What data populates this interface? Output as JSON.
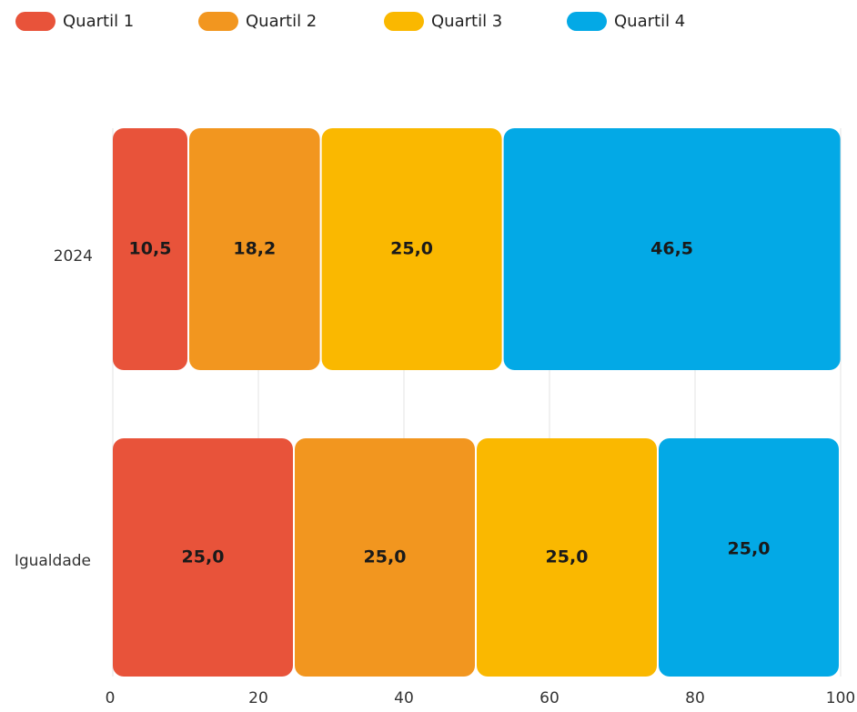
{
  "chart_data": {
    "type": "bar",
    "orientation": "horizontal",
    "stacked": true,
    "title": "",
    "xlabel": "",
    "ylabel": "",
    "categories": [
      "2024",
      "Igualdade"
    ],
    "series": [
      {
        "name": "Quartil 1",
        "values": [
          10.5,
          25.0
        ],
        "labels": [
          "10,5",
          "25,0"
        ],
        "color": "#E8533A"
      },
      {
        "name": "Quartil 2",
        "values": [
          18.2,
          25.0
        ],
        "labels": [
          "18,2",
          "25,0"
        ],
        "color": "#F2961F"
      },
      {
        "name": "Quartil 3",
        "values": [
          25.0,
          25.0
        ],
        "labels": [
          "25,0",
          "25,0"
        ],
        "color": "#FAB800"
      },
      {
        "name": "Quartil 4",
        "values": [
          46.5,
          25.0
        ],
        "labels": [
          "46,5",
          "25,0"
        ],
        "color": "#03A9E6"
      }
    ],
    "xlim": [
      0,
      100
    ],
    "xticks": [
      0,
      20,
      40,
      60,
      80,
      100
    ],
    "xtick_labels": [
      "0",
      "20",
      "40",
      "60",
      "80",
      "100"
    ],
    "grid": {
      "vertical": true,
      "horizontal": false
    },
    "gridline_color": "#E3E3E3",
    "data_label_color": "#1A1A1A",
    "axis_text_color": "#333333",
    "legend_position": "top-left"
  }
}
